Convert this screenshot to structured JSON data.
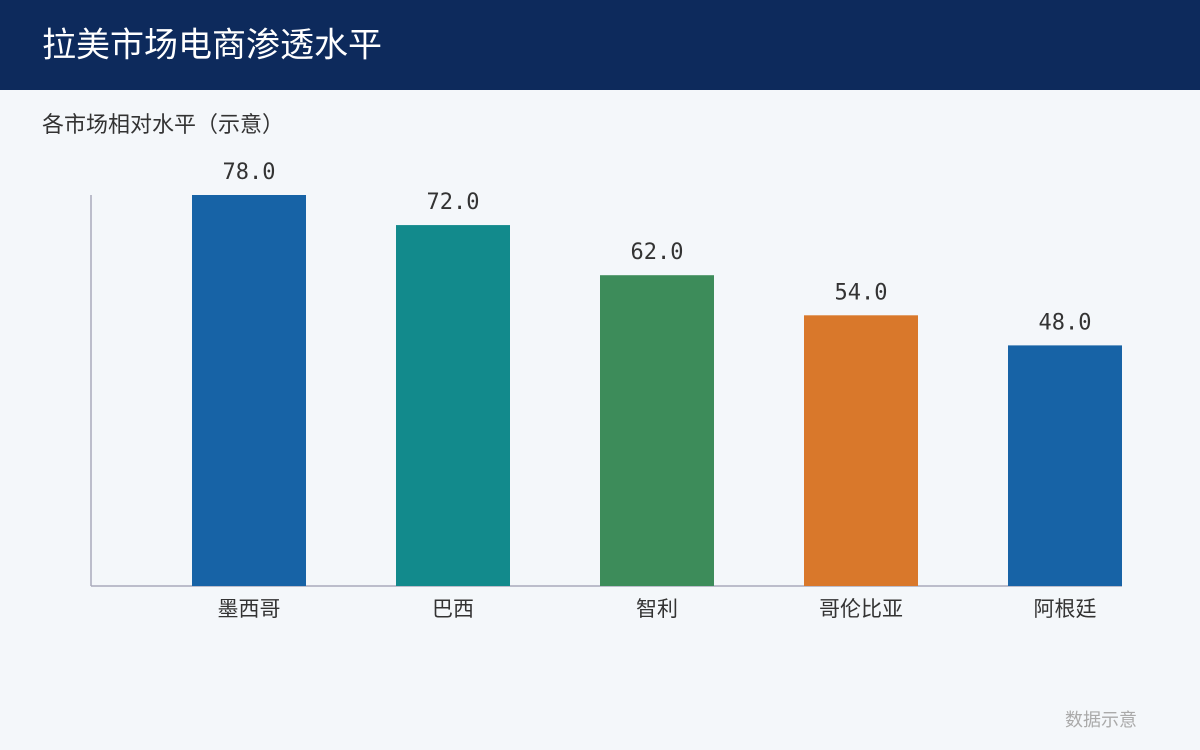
{
  "chart_data": {
    "type": "bar",
    "title": "拉美市场电商渗透水平",
    "subtitle": "各市场相对水平（示意）",
    "categories": [
      "墨西哥",
      "巴西",
      "智利",
      "哥伦比亚",
      "阿根廷"
    ],
    "values": [
      78,
      72,
      62,
      54,
      48
    ],
    "value_labels": [
      "78.0",
      "72.0",
      "62.0",
      "54.0",
      "48.0"
    ],
    "colors": [
      "#1763a6",
      "#128a8c",
      "#3d8c5a",
      "#d9782b",
      "#1763a6"
    ],
    "ylim": [
      0,
      78
    ],
    "note": "数据示意"
  }
}
